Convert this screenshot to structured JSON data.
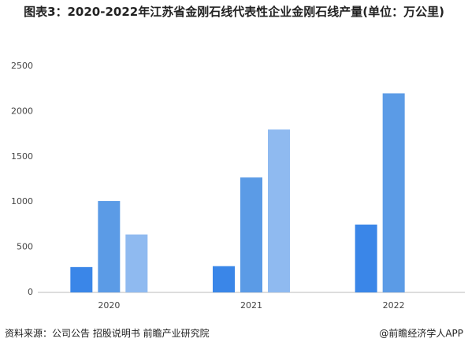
{
  "chart_data": {
    "type": "bar",
    "title": "图表3：2020-2022年江苏省金刚石线代表性企业金刚石线产量(单位：万公里)",
    "source": "资料来源：公司公告 招股说明书 前瞻产业研究院",
    "brand": "@前瞻经济学人APP",
    "categories": [
      "2020",
      "2021",
      "2022"
    ],
    "series": [
      {
        "color": "#3a86e8",
        "values": [
          280,
          290,
          750
        ]
      },
      {
        "color": "#5b9be6",
        "values": [
          1010,
          1270,
          2200
        ]
      },
      {
        "color": "#8fbaf0",
        "values": [
          640,
          1800,
          null
        ]
      }
    ],
    "ylim": [
      0,
      2500
    ],
    "yticks": [
      0,
      500,
      1000,
      1500,
      2000,
      2500
    ],
    "grid": false
  }
}
